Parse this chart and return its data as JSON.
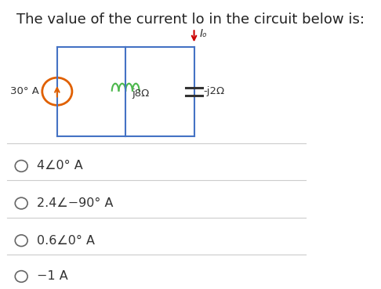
{
  "title": "The value of the current lo in the circuit below is:",
  "title_fontsize": 13,
  "bg_color": "#ffffff",
  "choice_texts": [
    "4∠0° A",
    "2.4∠−90° A",
    "0.6∠0° A",
    "−1 A"
  ],
  "divider_color": "#cccccc",
  "text_color": "#333333",
  "circle_color": "#666666",
  "blue": "#4472c4",
  "orange": "#e06000",
  "green": "#4db84d",
  "red": "#cc0000"
}
